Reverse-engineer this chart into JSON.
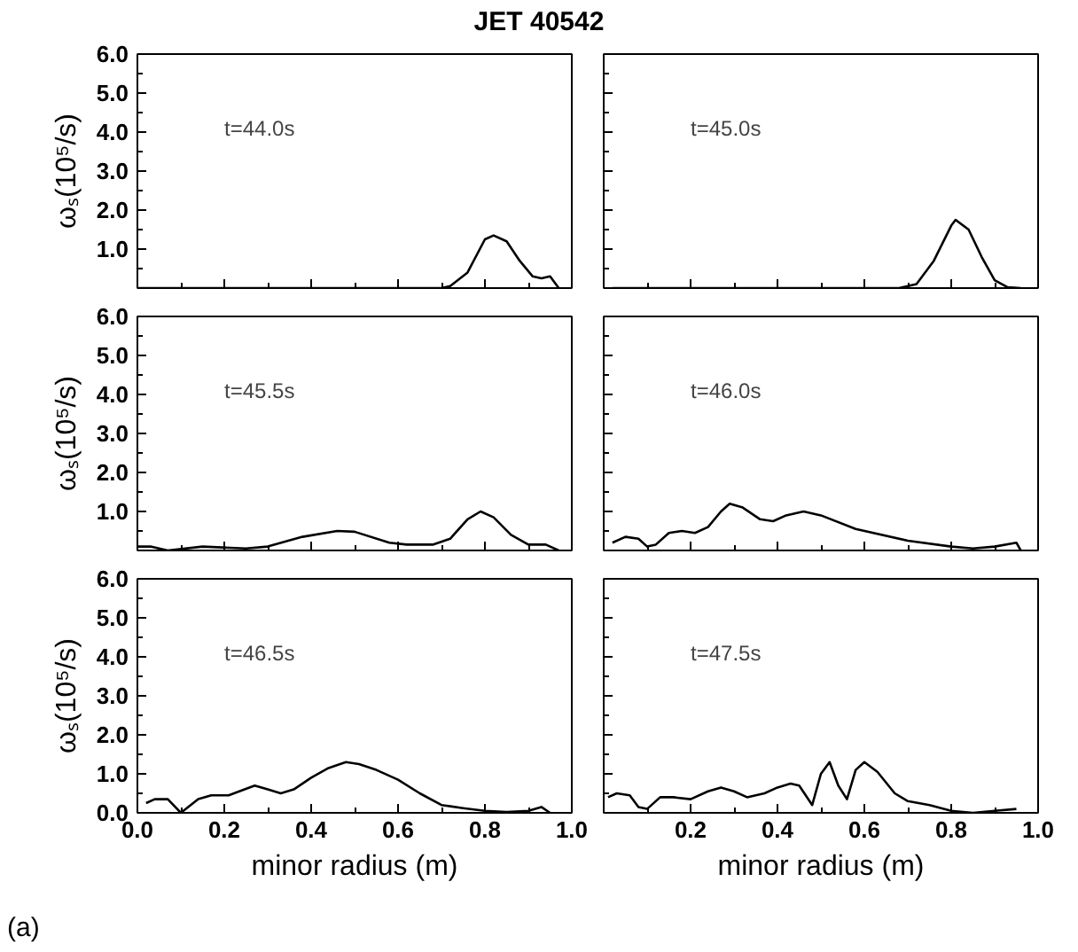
{
  "chart_data": [
    {
      "type": "line",
      "title": "JET 40542",
      "ylabel": "ωₛ(10⁵/s)",
      "annotations": [
        "t=44.0s"
      ],
      "tick_labels": "y",
      "xlim": [
        0,
        1
      ],
      "ylim": [
        0,
        6
      ],
      "xticks": [
        {
          "value": 0,
          "label": null
        },
        {
          "value": 0.2,
          "label": null
        },
        {
          "value": 0.4,
          "label": null
        },
        {
          "value": 0.6,
          "label": null
        },
        {
          "value": 0.8,
          "label": null
        },
        {
          "value": 1,
          "label": null
        }
      ],
      "yticks": [
        {
          "value": 0,
          "label": null
        },
        {
          "value": 1,
          "label": "1.0"
        },
        {
          "value": 2,
          "label": "2.0"
        },
        {
          "value": 3,
          "label": "3.0"
        },
        {
          "value": 4,
          "label": "4.0"
        },
        {
          "value": 5,
          "label": "5.0"
        },
        {
          "value": 6,
          "label": "6.0"
        }
      ],
      "series": [
        {
          "color": "#000000",
          "x": [
            0,
            0.1,
            0.2,
            0.3,
            0.4,
            0.5,
            0.6,
            0.7,
            0.72,
            0.76,
            0.8,
            0.82,
            0.85,
            0.88,
            0.91,
            0.93,
            0.95,
            0.97
          ],
          "values": [
            0,
            0,
            0,
            0,
            0,
            0,
            0,
            0,
            0.05,
            0.4,
            1.25,
            1.35,
            1.2,
            0.7,
            0.3,
            0.25,
            0.3,
            0
          ]
        }
      ]
    },
    {
      "type": "line",
      "annotations": [
        "t=45.0s"
      ],
      "tick_labels": false,
      "xlim": [
        0,
        1
      ],
      "ylim": [
        0,
        6
      ],
      "xticks": [
        {
          "value": 0,
          "label": null
        },
        {
          "value": 0.2,
          "label": null
        },
        {
          "value": 0.4,
          "label": null
        },
        {
          "value": 0.6,
          "label": null
        },
        {
          "value": 0.8,
          "label": null
        },
        {
          "value": 1,
          "label": null
        }
      ],
      "yticks": [
        {
          "value": 0,
          "label": null
        },
        {
          "value": 1,
          "label": null
        },
        {
          "value": 2,
          "label": null
        },
        {
          "value": 3,
          "label": null
        },
        {
          "value": 4,
          "label": null
        },
        {
          "value": 5,
          "label": null
        },
        {
          "value": 6,
          "label": null
        }
      ],
      "series": [
        {
          "color": "#000000",
          "x": [
            0.02,
            0.1,
            0.2,
            0.3,
            0.4,
            0.5,
            0.6,
            0.68,
            0.72,
            0.76,
            0.8,
            0.81,
            0.84,
            0.87,
            0.9,
            0.93,
            0.96
          ],
          "values": [
            0,
            0,
            0,
            0,
            0,
            0,
            0,
            0,
            0.1,
            0.7,
            1.6,
            1.75,
            1.5,
            0.8,
            0.2,
            0.02,
            0
          ]
        }
      ]
    },
    {
      "type": "line",
      "ylabel": "ωₛ(10⁵/s)",
      "annotations": [
        "t=45.5s"
      ],
      "tick_labels": "y",
      "xlim": [
        0,
        1
      ],
      "ylim": [
        0,
        6
      ],
      "xticks": [
        {
          "value": 0,
          "label": null
        },
        {
          "value": 0.2,
          "label": null
        },
        {
          "value": 0.4,
          "label": null
        },
        {
          "value": 0.6,
          "label": null
        },
        {
          "value": 0.8,
          "label": null
        },
        {
          "value": 1,
          "label": null
        }
      ],
      "yticks": [
        {
          "value": 0,
          "label": null
        },
        {
          "value": 1,
          "label": "1.0"
        },
        {
          "value": 2,
          "label": "2.0"
        },
        {
          "value": 3,
          "label": "3.0"
        },
        {
          "value": 4,
          "label": "4.0"
        },
        {
          "value": 5,
          "label": "5.0"
        },
        {
          "value": 6,
          "label": "6.0"
        }
      ],
      "series": [
        {
          "color": "#000000",
          "x": [
            0,
            0.03,
            0.07,
            0.15,
            0.25,
            0.3,
            0.38,
            0.46,
            0.5,
            0.58,
            0.62,
            0.68,
            0.72,
            0.76,
            0.79,
            0.82,
            0.86,
            0.9,
            0.94,
            0.97
          ],
          "values": [
            0.1,
            0.1,
            0,
            0.1,
            0.05,
            0.1,
            0.35,
            0.5,
            0.48,
            0.2,
            0.15,
            0.15,
            0.3,
            0.8,
            1.0,
            0.85,
            0.4,
            0.15,
            0.15,
            0
          ]
        }
      ]
    },
    {
      "type": "line",
      "annotations": [
        "t=46.0s"
      ],
      "tick_labels": false,
      "xlim": [
        0,
        1
      ],
      "ylim": [
        0,
        6
      ],
      "xticks": [
        {
          "value": 0,
          "label": null
        },
        {
          "value": 0.2,
          "label": null
        },
        {
          "value": 0.4,
          "label": null
        },
        {
          "value": 0.6,
          "label": null
        },
        {
          "value": 0.8,
          "label": null
        },
        {
          "value": 1,
          "label": null
        }
      ],
      "yticks": [
        {
          "value": 0,
          "label": null
        },
        {
          "value": 1,
          "label": null
        },
        {
          "value": 2,
          "label": null
        },
        {
          "value": 3,
          "label": null
        },
        {
          "value": 4,
          "label": null
        },
        {
          "value": 5,
          "label": null
        },
        {
          "value": 6,
          "label": null
        }
      ],
      "series": [
        {
          "color": "#000000",
          "x": [
            0.02,
            0.05,
            0.08,
            0.1,
            0.12,
            0.15,
            0.18,
            0.21,
            0.24,
            0.27,
            0.29,
            0.32,
            0.36,
            0.39,
            0.42,
            0.46,
            0.5,
            0.58,
            0.7,
            0.8,
            0.85,
            0.9,
            0.95,
            0.96
          ],
          "values": [
            0.2,
            0.35,
            0.3,
            0.1,
            0.15,
            0.45,
            0.5,
            0.45,
            0.6,
            1.0,
            1.2,
            1.1,
            0.8,
            0.75,
            0.9,
            1.0,
            0.9,
            0.55,
            0.25,
            0.1,
            0.05,
            0.1,
            0.2,
            0
          ]
        }
      ]
    },
    {
      "type": "line",
      "ylabel": "ωₛ(10⁵/s)",
      "xlabel": "minor radius (m)",
      "annotations": [
        "t=46.5s",
        "(a)"
      ],
      "xlim": [
        0,
        1
      ],
      "ylim": [
        0,
        6
      ],
      "xticks": [
        {
          "value": 0,
          "label": "0.0"
        },
        {
          "value": 0.2,
          "label": "0.2"
        },
        {
          "value": 0.4,
          "label": "0.4"
        },
        {
          "value": 0.6,
          "label": "0.6"
        },
        {
          "value": 0.8,
          "label": "0.8"
        },
        {
          "value": 1,
          "label": "1.0"
        }
      ],
      "yticks": [
        {
          "value": 0,
          "label": "0.0"
        },
        {
          "value": 1,
          "label": "1.0"
        },
        {
          "value": 2,
          "label": "2.0"
        },
        {
          "value": 3,
          "label": "3.0"
        },
        {
          "value": 4,
          "label": "4.0"
        },
        {
          "value": 5,
          "label": "5.0"
        },
        {
          "value": 6,
          "label": "6.0"
        }
      ],
      "series": [
        {
          "color": "#000000",
          "x": [
            0.02,
            0.04,
            0.07,
            0.1,
            0.14,
            0.17,
            0.21,
            0.27,
            0.3,
            0.33,
            0.36,
            0.4,
            0.44,
            0.48,
            0.51,
            0.55,
            0.6,
            0.65,
            0.7,
            0.75,
            0.8,
            0.85,
            0.9,
            0.93,
            0.95
          ],
          "values": [
            0.25,
            0.35,
            0.35,
            0,
            0.35,
            0.45,
            0.45,
            0.7,
            0.6,
            0.5,
            0.6,
            0.9,
            1.15,
            1.3,
            1.25,
            1.1,
            0.85,
            0.5,
            0.2,
            0.12,
            0.05,
            0.02,
            0.05,
            0.15,
            0
          ]
        }
      ]
    },
    {
      "type": "line",
      "xlabel": "minor radius (m)",
      "annotations": [
        "t=47.5s"
      ],
      "tick_labels": "x",
      "xlim": [
        0,
        1
      ],
      "ylim": [
        0,
        6
      ],
      "xticks": [
        {
          "value": 0,
          "label": null
        },
        {
          "value": 0.2,
          "label": "0.2"
        },
        {
          "value": 0.4,
          "label": "0.4"
        },
        {
          "value": 0.6,
          "label": "0.6"
        },
        {
          "value": 0.8,
          "label": "0.8"
        },
        {
          "value": 1,
          "label": "1.0"
        }
      ],
      "yticks": [
        {
          "value": 0,
          "label": null
        },
        {
          "value": 1,
          "label": null
        },
        {
          "value": 2,
          "label": null
        },
        {
          "value": 3,
          "label": null
        },
        {
          "value": 4,
          "label": null
        },
        {
          "value": 5,
          "label": null
        },
        {
          "value": 6,
          "label": null
        }
      ],
      "series": [
        {
          "color": "#000000",
          "x": [
            0.01,
            0.03,
            0.06,
            0.08,
            0.1,
            0.13,
            0.16,
            0.2,
            0.24,
            0.27,
            0.3,
            0.33,
            0.37,
            0.4,
            0.43,
            0.45,
            0.48,
            0.5,
            0.52,
            0.54,
            0.56,
            0.58,
            0.6,
            0.63,
            0.67,
            0.7,
            0.75,
            0.8,
            0.85,
            0.9,
            0.95
          ],
          "values": [
            0.4,
            0.5,
            0.45,
            0.15,
            0.1,
            0.4,
            0.4,
            0.35,
            0.55,
            0.65,
            0.55,
            0.4,
            0.5,
            0.65,
            0.75,
            0.7,
            0.2,
            1.0,
            1.3,
            0.7,
            0.35,
            1.1,
            1.3,
            1.05,
            0.5,
            0.3,
            0.2,
            0.05,
            0,
            0.05,
            0.1
          ]
        }
      ]
    }
  ]
}
